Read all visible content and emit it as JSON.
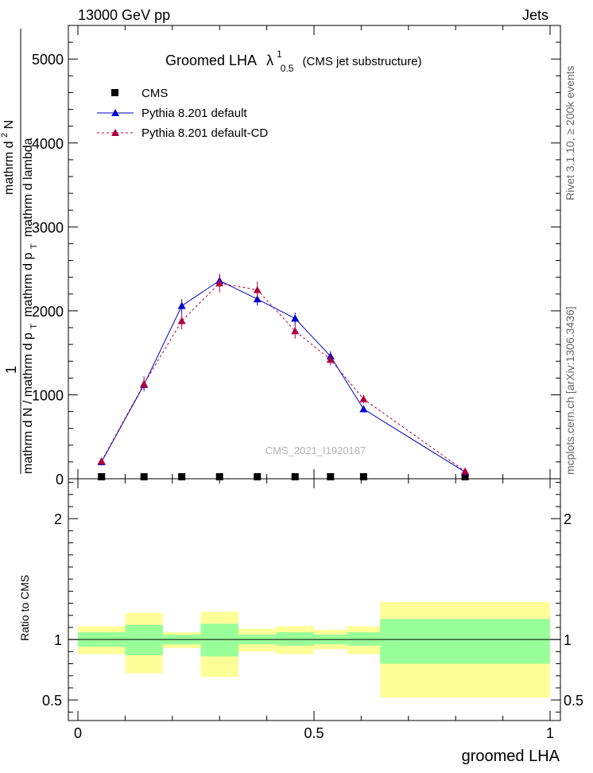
{
  "header": {
    "energy_label": "13000 GeV pp",
    "process_label": "Jets"
  },
  "side_labels": {
    "rivet": "Rivet 3.1.10, ≥ 200k events",
    "mcplots": "mcplots.cern.ch [arXiv:1306.3436]"
  },
  "chart_data": [
    {
      "type": "line",
      "panel": "main",
      "title_main": "Groomed LHA",
      "title_symbol": "λ",
      "title_sup": "1",
      "title_sub": "0.5",
      "title_suffix": "(CMS jet substructure)",
      "ylabel": "1 / mathrm dN / mathrm d p_T mathrm d^2N / mathrm d p_T mathrm d lambda",
      "ylabel_parts": {
        "numerator": "1",
        "denominator": "mathrm d N / mathrm d p",
        "den_sub": "T",
        "big_num": "mathrm d",
        "big_num_sup": "2",
        "big_num_tail": "N",
        "big_den": "mathrm d p",
        "big_den_sub": "T",
        "big_den_tail": "mathrm d lambda"
      },
      "watermark": "CMS_2021_I1920187",
      "xlim": [
        0,
        1
      ],
      "ylim": [
        0,
        5400
      ],
      "yticks": [
        0,
        1000,
        2000,
        3000,
        4000,
        5000
      ],
      "ytick_labels": [
        "0",
        "1000",
        "2000",
        "3000",
        "4000",
        "5000"
      ],
      "legend_position": "top-left",
      "series": [
        {
          "name": "CMS",
          "style": "marker",
          "color": "#000000",
          "x": [
            0.05,
            0.14,
            0.22,
            0.3,
            0.38,
            0.46,
            0.535,
            0.605,
            0.82
          ],
          "y": [
            0,
            0,
            0,
            0,
            0,
            0,
            0,
            0,
            0
          ]
        },
        {
          "name": "Pythia 8.201 default",
          "style": "solid",
          "color": "#0000cc",
          "x": [
            0.05,
            0.14,
            0.22,
            0.3,
            0.38,
            0.46,
            0.535,
            0.605,
            0.82
          ],
          "y": [
            200,
            1120,
            2060,
            2360,
            2140,
            1910,
            1460,
            830,
            80
          ],
          "err": [
            20,
            60,
            80,
            80,
            80,
            70,
            60,
            40,
            10
          ]
        },
        {
          "name": "Pythia 8.201 default-CD",
          "style": "dotted",
          "color": "#b0003a",
          "x": [
            0.05,
            0.14,
            0.22,
            0.3,
            0.38,
            0.46,
            0.535,
            0.605,
            0.82
          ],
          "y": [
            210,
            1130,
            1880,
            2330,
            2250,
            1760,
            1420,
            950,
            90
          ],
          "err": [
            25,
            90,
            100,
            110,
            100,
            90,
            70,
            50,
            15
          ]
        }
      ]
    },
    {
      "type": "area",
      "panel": "ratio",
      "ylabel": "Ratio to CMS",
      "xlabel": "groomed LHA",
      "xlim": [
        0,
        1
      ],
      "ylim": [
        0.33,
        2.33
      ],
      "xticks": [
        0,
        0.5,
        1
      ],
      "xtick_labels": [
        "0",
        "0.5",
        "1"
      ],
      "yticks": [
        0.5,
        1,
        2
      ],
      "ytick_labels": [
        "0.5",
        "1",
        "2"
      ],
      "bins": [
        {
          "lo": 0.0,
          "hi": 0.1,
          "inner": [
            0.94,
            1.06
          ],
          "outer": [
            0.88,
            1.11
          ]
        },
        {
          "lo": 0.1,
          "hi": 0.18,
          "inner": [
            0.87,
            1.12
          ],
          "outer": [
            0.72,
            1.22
          ]
        },
        {
          "lo": 0.18,
          "hi": 0.26,
          "inner": [
            0.96,
            1.04
          ],
          "outer": [
            0.93,
            1.06
          ]
        },
        {
          "lo": 0.26,
          "hi": 0.34,
          "inner": [
            0.86,
            1.13
          ],
          "outer": [
            0.69,
            1.23
          ]
        },
        {
          "lo": 0.34,
          "hi": 0.42,
          "inner": [
            0.96,
            1.04
          ],
          "outer": [
            0.9,
            1.09
          ]
        },
        {
          "lo": 0.42,
          "hi": 0.5,
          "inner": [
            0.95,
            1.06
          ],
          "outer": [
            0.88,
            1.11
          ]
        },
        {
          "lo": 0.5,
          "hi": 0.57,
          "inner": [
            0.96,
            1.04
          ],
          "outer": [
            0.92,
            1.08
          ]
        },
        {
          "lo": 0.57,
          "hi": 0.64,
          "inner": [
            0.95,
            1.06
          ],
          "outer": [
            0.88,
            1.11
          ]
        },
        {
          "lo": 0.64,
          "hi": 1.0,
          "inner": [
            0.8,
            1.17
          ],
          "outer": [
            0.52,
            1.31
          ]
        }
      ],
      "colors": {
        "inner": "#99ff99",
        "outer": "#ffff99"
      }
    }
  ]
}
